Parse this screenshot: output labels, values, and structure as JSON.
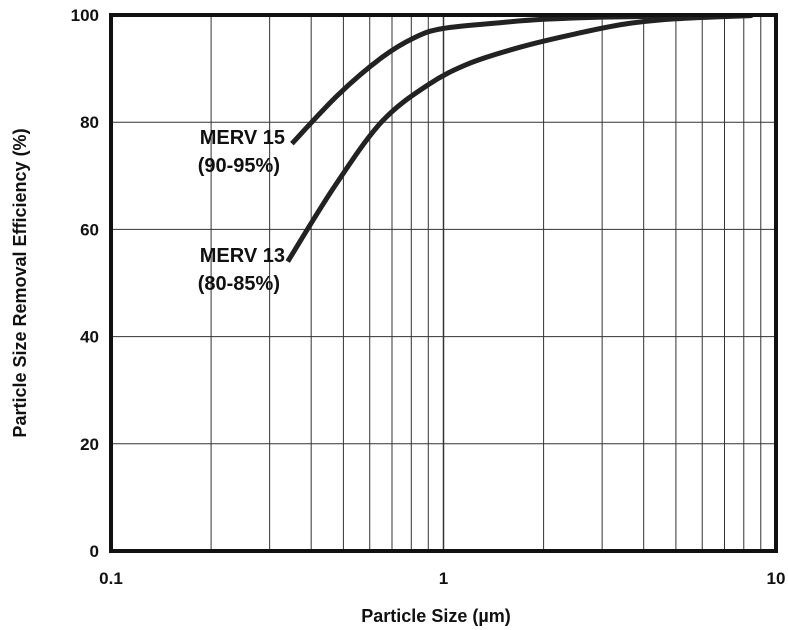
{
  "chart_data": {
    "type": "line",
    "xlabel": "Particle Size (µm)",
    "ylabel": "Particle Size Removal Efficiency (%)",
    "xscale": "log",
    "xlim": [
      0.1,
      10
    ],
    "ylim": [
      0,
      100
    ],
    "grid": true,
    "x_tick_labels": [
      "0.1",
      "1",
      "10"
    ],
    "y_tick_labels": [
      "0",
      "20",
      "40",
      "60",
      "80",
      "100"
    ],
    "series": [
      {
        "name": "MERV 15",
        "label_lines": [
          "MERV 15",
          "(90-95%)"
        ],
        "x": [
          0.35,
          0.48,
          0.65,
          0.82,
          1.0,
          1.5,
          2.0,
          3.0,
          5.0,
          8.5
        ],
        "y": [
          76.0,
          85.0,
          92.0,
          95.8,
          97.5,
          98.6,
          99.2,
          99.6,
          99.8,
          99.9
        ]
      },
      {
        "name": "MERV 13",
        "label_lines": [
          "MERV 13",
          "(80-85%)"
        ],
        "x": [
          0.34,
          0.47,
          0.65,
          0.9,
          1.2,
          1.7,
          2.5,
          3.5,
          5.0,
          8.5
        ],
        "y": [
          54.0,
          68.0,
          80.0,
          87.0,
          91.0,
          94.0,
          96.5,
          98.3,
          99.3,
          99.9
        ]
      }
    ]
  }
}
